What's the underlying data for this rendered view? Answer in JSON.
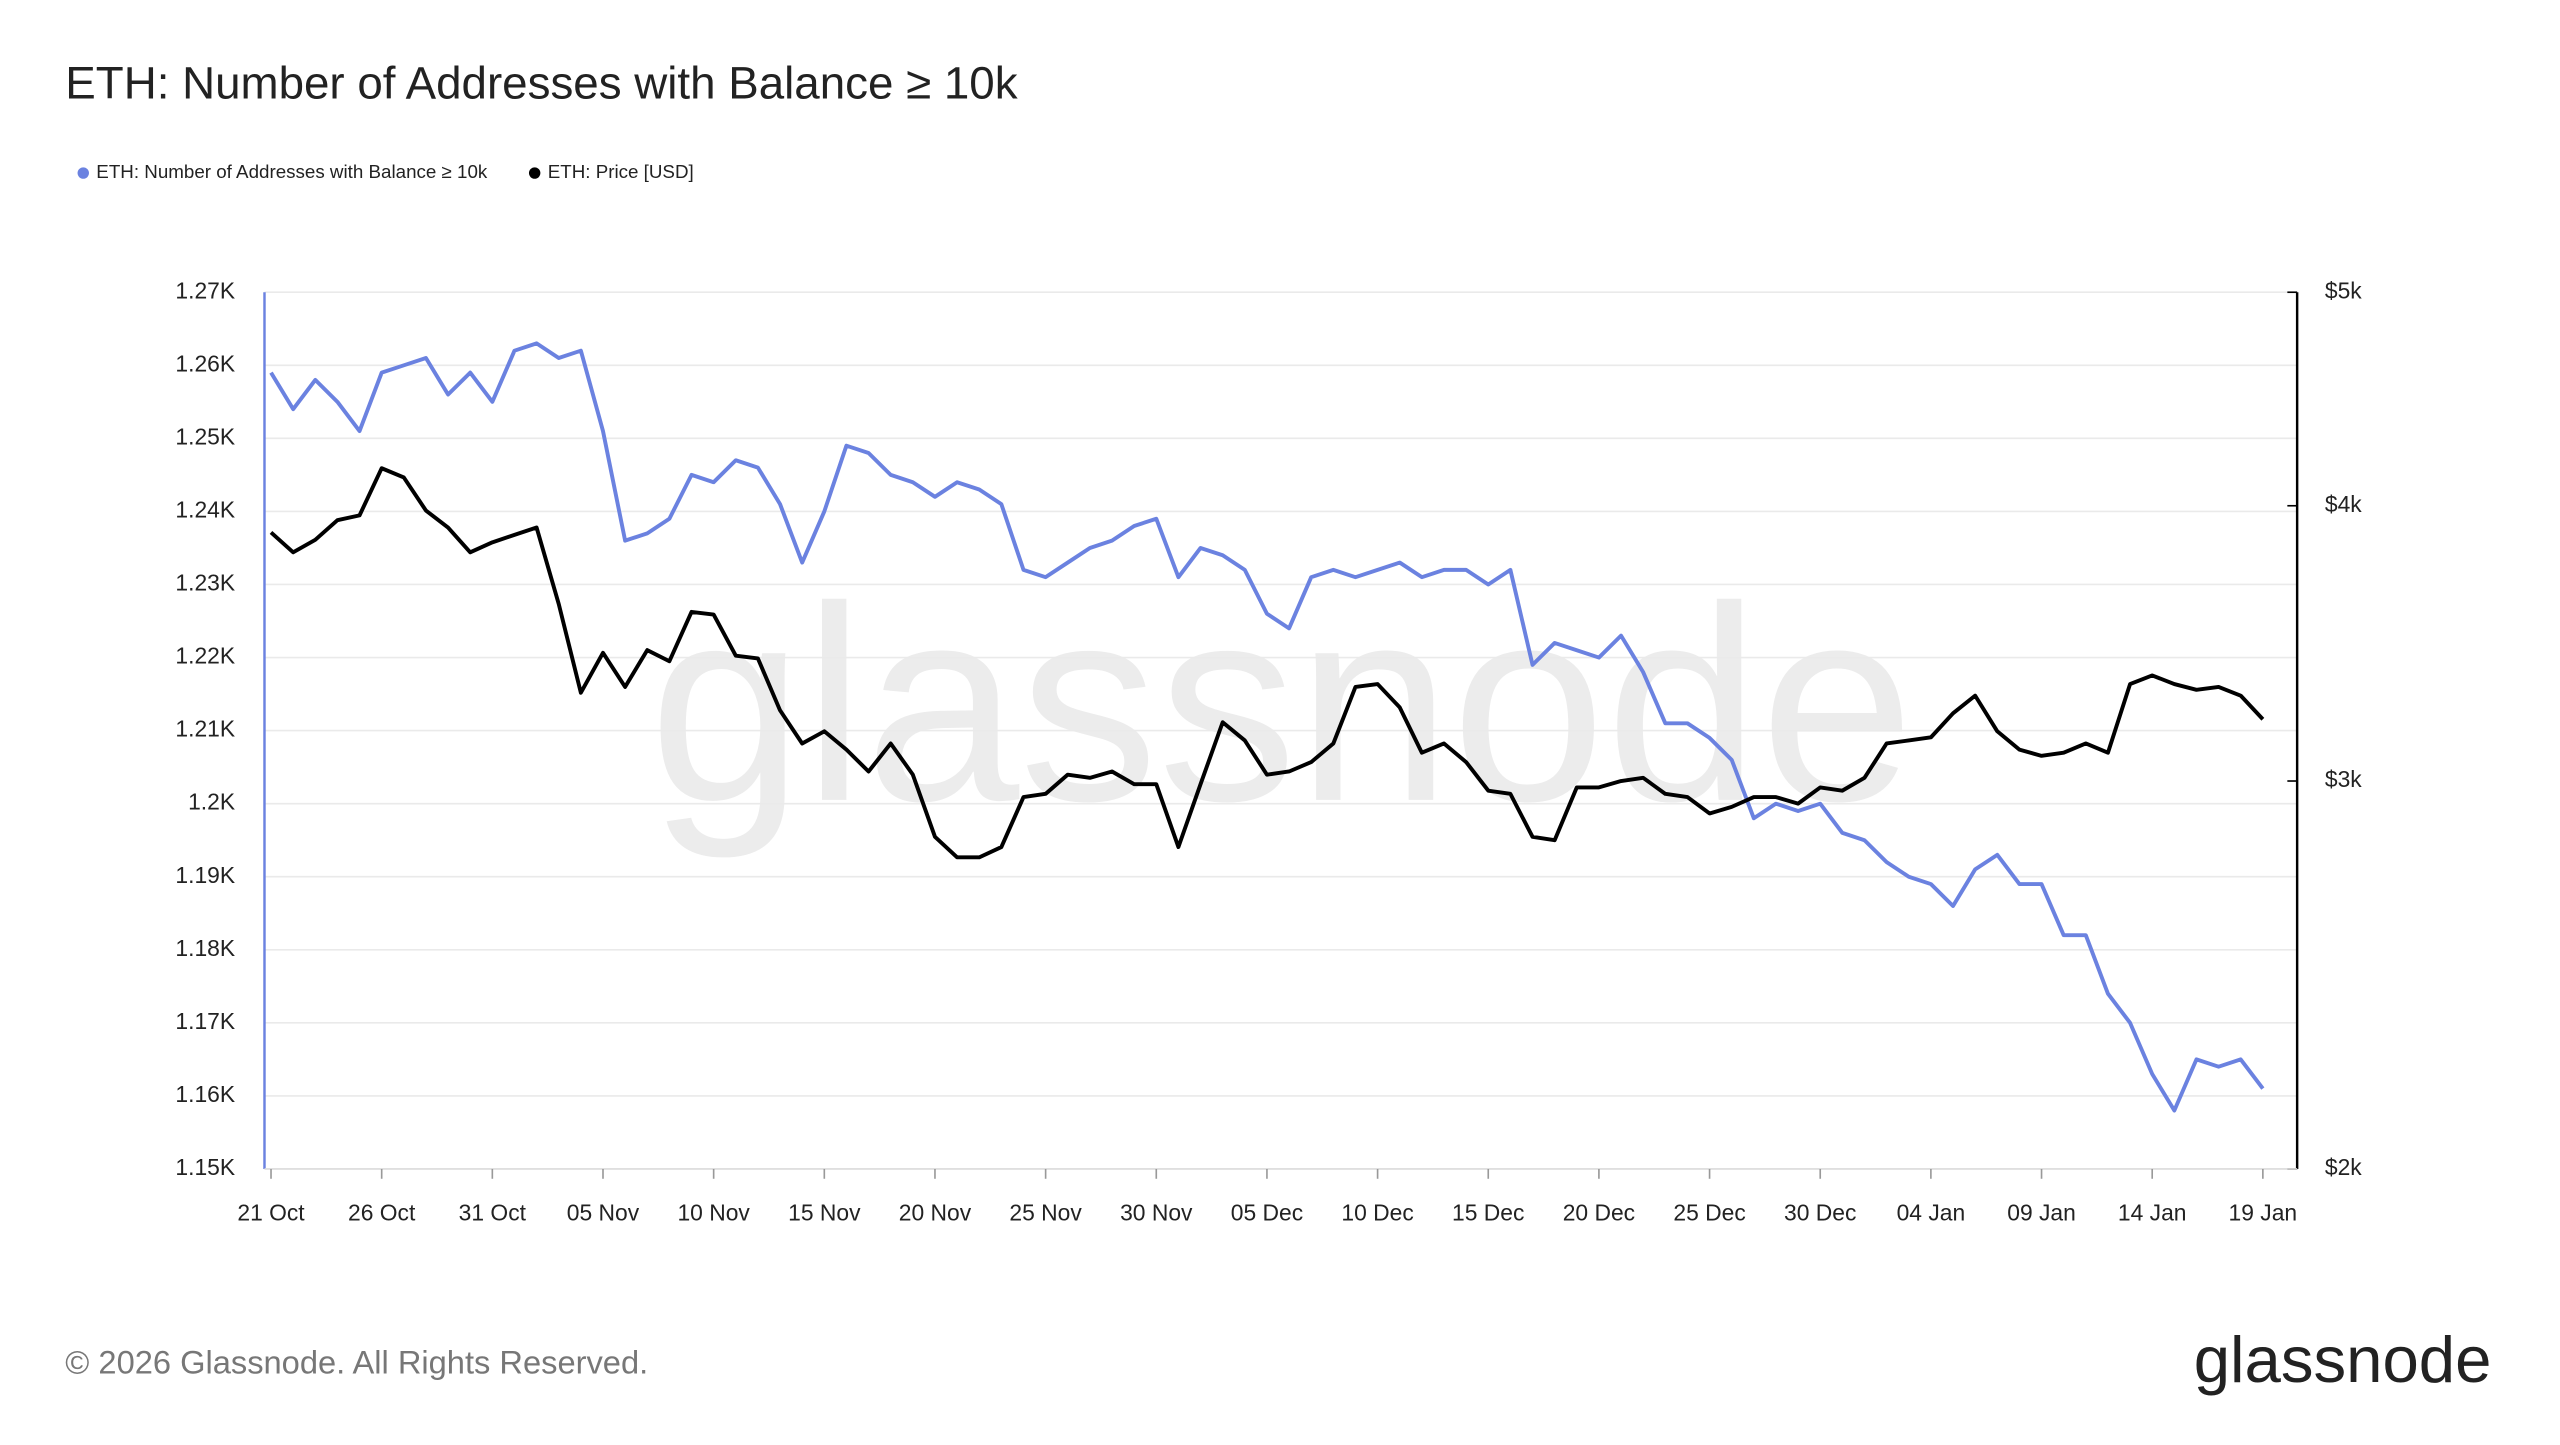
{
  "chart_data": {
    "type": "line",
    "title": "ETH: Number of Addresses with Balance ≥ 10k",
    "categories": [
      "21 Oct",
      null,
      null,
      null,
      null,
      "26 Oct",
      null,
      null,
      null,
      null,
      "31 Oct",
      null,
      null,
      null,
      null,
      "05 Nov",
      null,
      null,
      null,
      null,
      "10 Nov",
      null,
      null,
      null,
      null,
      "15 Nov",
      null,
      null,
      null,
      null,
      "20 Nov",
      null,
      null,
      null,
      null,
      "25 Nov",
      null,
      null,
      null,
      null,
      "30 Nov",
      null,
      null,
      null,
      null,
      "05 Dec",
      null,
      null,
      null,
      null,
      "10 Dec",
      null,
      null,
      null,
      null,
      "15 Dec",
      null,
      null,
      null,
      null,
      "20 Dec",
      null,
      null,
      null,
      null,
      "25 Dec",
      null,
      null,
      null,
      null,
      "30 Dec",
      null,
      null,
      null,
      null,
      "04 Jan",
      null,
      null,
      null,
      null,
      "09 Jan",
      null,
      null,
      null,
      null,
      "14 Jan",
      null,
      null,
      null,
      null,
      "19 Jan"
    ],
    "series": [
      {
        "name": "ETH: Number of Addresses with Balance ≥ 10k",
        "color": "#6b82e0",
        "values": [
          1259,
          1254,
          1258,
          1255,
          1251,
          1259,
          1260,
          1261,
          1256,
          1259,
          1255,
          1262,
          1263,
          1261,
          1262,
          1251,
          1236,
          1237,
          1239,
          1245,
          1244,
          1247,
          1246,
          1241,
          1233,
          1240,
          1249,
          1248,
          1245,
          1244,
          1242,
          1244,
          1243,
          1241,
          1232,
          1231,
          1233,
          1235,
          1236,
          1238,
          1239,
          1231,
          1235,
          1234,
          1232,
          1226,
          1224,
          1231,
          1232,
          1231,
          1232,
          1233,
          1231,
          1232,
          1232,
          1230,
          1232,
          1219,
          1222,
          1221,
          1220,
          1223,
          1218,
          1211,
          1211,
          1209,
          1206,
          1198,
          1200,
          1199,
          1200,
          1196,
          1195,
          1192,
          1190,
          1189,
          1186,
          1191,
          1193,
          1189,
          1189,
          1182,
          1182,
          1174,
          1170,
          1163,
          1158,
          1165,
          1164,
          1165,
          1161
        ]
      },
      {
        "name": "ETH: Price [USD]",
        "color": "#000000",
        "axis": "y2",
        "values": [
          3890,
          3810,
          3860,
          3940,
          3960,
          4160,
          4120,
          3980,
          3910,
          3810,
          3850,
          3880,
          3910,
          3610,
          3290,
          3430,
          3310,
          3440,
          3400,
          3580,
          3570,
          3420,
          3410,
          3230,
          3120,
          3160,
          3100,
          3030,
          3120,
          3020,
          2830,
          2770,
          2770,
          2800,
          2950,
          2960,
          3020,
          3010,
          3030,
          2990,
          2990,
          2800,
          2990,
          3190,
          3130,
          3020,
          3030,
          3060,
          3120,
          3310,
          3320,
          3240,
          3090,
          3120,
          3060,
          2970,
          2960,
          2830,
          2820,
          2980,
          2980,
          3000,
          3010,
          2960,
          2950,
          2900,
          2920,
          2950,
          2950,
          2930,
          2980,
          2970,
          3010,
          3120,
          3130,
          3140,
          3220,
          3280,
          3160,
          3100,
          3080,
          3090,
          3120,
          3090,
          3320,
          3350,
          3320,
          3300,
          3310,
          3280,
          3200
        ]
      }
    ],
    "ylim": [
      1150,
      1270
    ],
    "yticks": [
      {
        "value": 1150,
        "label": "1.15K"
      },
      {
        "value": 1160,
        "label": "1.16K"
      },
      {
        "value": 1170,
        "label": "1.17K"
      },
      {
        "value": 1180,
        "label": "1.18K"
      },
      {
        "value": 1190,
        "label": "1.19K"
      },
      {
        "value": 1200,
        "label": "1.2K"
      },
      {
        "value": 1210,
        "label": "1.21K"
      },
      {
        "value": 1220,
        "label": "1.22K"
      },
      {
        "value": 1230,
        "label": "1.23K"
      },
      {
        "value": 1240,
        "label": "1.24K"
      },
      {
        "value": 1250,
        "label": "1.25K"
      },
      {
        "value": 1260,
        "label": "1.26K"
      },
      {
        "value": 1270,
        "label": "1.27K"
      }
    ],
    "y2lim": [
      2000,
      5000
    ],
    "y2ticks": [
      {
        "value": 2000,
        "label": "$2k"
      },
      {
        "value": 3000,
        "label": "$3k"
      },
      {
        "value": 4000,
        "label": "$4k"
      },
      {
        "value": 5000,
        "label": "$5k"
      }
    ],
    "y2_log": true,
    "grid": true,
    "legend": "top-left",
    "watermark": "glassnode",
    "footer": "© 2026 Glassnode. All Rights Reserved.",
    "logo": "glassnode"
  }
}
